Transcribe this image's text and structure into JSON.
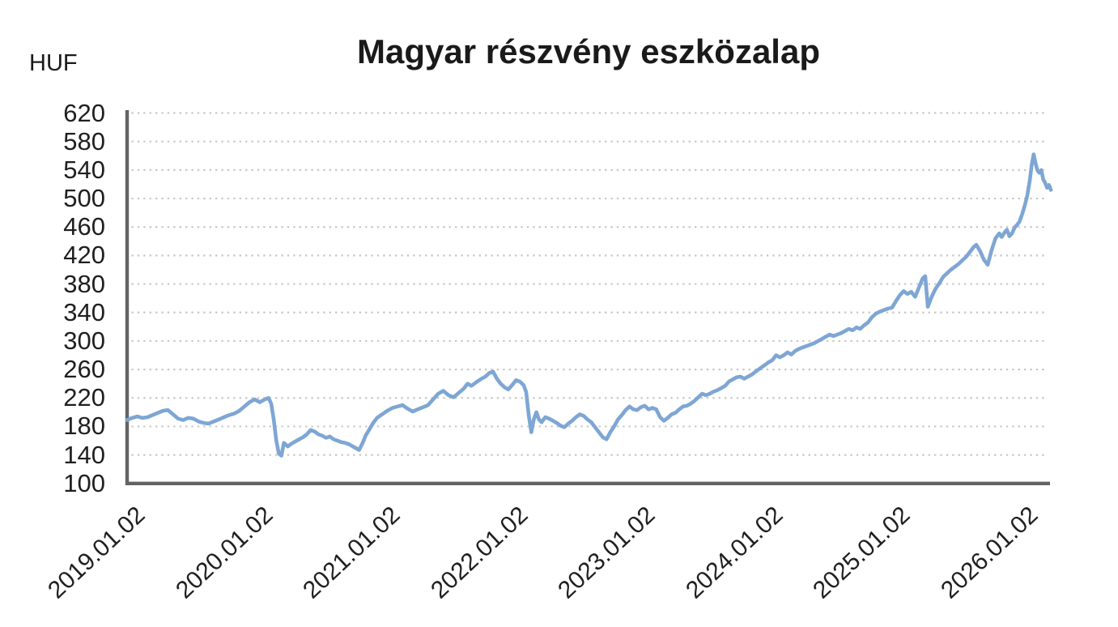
{
  "header": {
    "title": "Magyar részvény eszközalap",
    "unit_label": "HUF"
  },
  "colors": {
    "line": "#7EA6D4",
    "axis": "#636363",
    "grid": "#c9c9c9",
    "text": "#1f1f1f",
    "background": "#ffffff"
  },
  "chart_data": {
    "type": "line",
    "title": "Magyar részvény eszközalap",
    "ylabel": "HUF",
    "xlabel": "",
    "ylim": [
      100,
      620
    ],
    "y_tick_step": 40,
    "y_ticks": [
      620,
      580,
      540,
      500,
      460,
      420,
      380,
      340,
      300,
      260,
      220,
      180,
      140,
      100
    ],
    "x_ticks": [
      {
        "year": 2019,
        "label": "2019.01.02"
      },
      {
        "year": 2020,
        "label": "2020.01.02"
      },
      {
        "year": 2021,
        "label": "2021.01.02"
      },
      {
        "year": 2022,
        "label": "2022.01.02"
      },
      {
        "year": 2023,
        "label": "2023.01.02"
      },
      {
        "year": 2024,
        "label": "2024.01.02"
      },
      {
        "year": 2025,
        "label": "2025.01.02"
      },
      {
        "year": 2026,
        "label": "2026.01.02"
      }
    ],
    "grid": {
      "horizontal": true,
      "vertical": false,
      "style": "dotted"
    },
    "legend": "none",
    "series": [
      {
        "name": "Magyar részvény eszközalap",
        "unit": "HUF",
        "points": [
          [
            2019.0,
            189
          ],
          [
            2019.04,
            192
          ],
          [
            2019.08,
            194
          ],
          [
            2019.12,
            192
          ],
          [
            2019.16,
            193
          ],
          [
            2019.2,
            196
          ],
          [
            2019.24,
            199
          ],
          [
            2019.28,
            202
          ],
          [
            2019.32,
            203
          ],
          [
            2019.36,
            197
          ],
          [
            2019.4,
            191
          ],
          [
            2019.44,
            189
          ],
          [
            2019.48,
            192
          ],
          [
            2019.52,
            191
          ],
          [
            2019.56,
            187
          ],
          [
            2019.6,
            185
          ],
          [
            2019.64,
            184
          ],
          [
            2019.68,
            187
          ],
          [
            2019.72,
            190
          ],
          [
            2019.76,
            193
          ],
          [
            2019.8,
            196
          ],
          [
            2019.84,
            198
          ],
          [
            2019.88,
            202
          ],
          [
            2019.92,
            208
          ],
          [
            2019.96,
            214
          ],
          [
            2020.0,
            218
          ],
          [
            2020.04,
            214
          ],
          [
            2020.08,
            218
          ],
          [
            2020.11,
            220
          ],
          [
            2020.13,
            212
          ],
          [
            2020.15,
            190
          ],
          [
            2020.17,
            160
          ],
          [
            2020.19,
            142
          ],
          [
            2020.21,
            139
          ],
          [
            2020.23,
            157
          ],
          [
            2020.26,
            152
          ],
          [
            2020.29,
            156
          ],
          [
            2020.32,
            159
          ],
          [
            2020.35,
            162
          ],
          [
            2020.38,
            165
          ],
          [
            2020.41,
            169
          ],
          [
            2020.44,
            175
          ],
          [
            2020.47,
            173
          ],
          [
            2020.5,
            169
          ],
          [
            2020.53,
            167
          ],
          [
            2020.56,
            164
          ],
          [
            2020.59,
            166
          ],
          [
            2020.62,
            162
          ],
          [
            2020.65,
            160
          ],
          [
            2020.68,
            158
          ],
          [
            2020.71,
            157
          ],
          [
            2020.74,
            155
          ],
          [
            2020.77,
            152
          ],
          [
            2020.8,
            149
          ],
          [
            2020.82,
            147
          ],
          [
            2020.85,
            158
          ],
          [
            2020.87,
            167
          ],
          [
            2020.9,
            176
          ],
          [
            2020.93,
            185
          ],
          [
            2020.96,
            192
          ],
          [
            2021.0,
            197
          ],
          [
            2021.04,
            202
          ],
          [
            2021.08,
            206
          ],
          [
            2021.12,
            208
          ],
          [
            2021.16,
            210
          ],
          [
            2021.2,
            205
          ],
          [
            2021.24,
            201
          ],
          [
            2021.28,
            204
          ],
          [
            2021.32,
            207
          ],
          [
            2021.36,
            210
          ],
          [
            2021.4,
            218
          ],
          [
            2021.44,
            226
          ],
          [
            2021.48,
            230
          ],
          [
            2021.52,
            224
          ],
          [
            2021.56,
            221
          ],
          [
            2021.6,
            227
          ],
          [
            2021.64,
            233
          ],
          [
            2021.67,
            240
          ],
          [
            2021.7,
            237
          ],
          [
            2021.73,
            241
          ],
          [
            2021.77,
            246
          ],
          [
            2021.81,
            250
          ],
          [
            2021.84,
            255
          ],
          [
            2021.87,
            257
          ],
          [
            2021.9,
            247
          ],
          [
            2021.93,
            240
          ],
          [
            2021.96,
            235
          ],
          [
            2021.99,
            232
          ],
          [
            2022.02,
            238
          ],
          [
            2022.05,
            245
          ],
          [
            2022.08,
            243
          ],
          [
            2022.11,
            238
          ],
          [
            2022.13,
            228
          ],
          [
            2022.15,
            196
          ],
          [
            2022.17,
            172
          ],
          [
            2022.19,
            190
          ],
          [
            2022.21,
            200
          ],
          [
            2022.23,
            190
          ],
          [
            2022.25,
            186
          ],
          [
            2022.28,
            193
          ],
          [
            2022.31,
            191
          ],
          [
            2022.34,
            188
          ],
          [
            2022.37,
            185
          ],
          [
            2022.4,
            181
          ],
          [
            2022.43,
            179
          ],
          [
            2022.46,
            184
          ],
          [
            2022.49,
            188
          ],
          [
            2022.52,
            193
          ],
          [
            2022.55,
            197
          ],
          [
            2022.58,
            195
          ],
          [
            2022.61,
            190
          ],
          [
            2022.64,
            186
          ],
          [
            2022.67,
            179
          ],
          [
            2022.7,
            172
          ],
          [
            2022.73,
            165
          ],
          [
            2022.76,
            162
          ],
          [
            2022.79,
            172
          ],
          [
            2022.82,
            180
          ],
          [
            2022.85,
            190
          ],
          [
            2022.88,
            196
          ],
          [
            2022.91,
            203
          ],
          [
            2022.94,
            208
          ],
          [
            2022.97,
            204
          ],
          [
            2023.0,
            203
          ],
          [
            2023.03,
            207
          ],
          [
            2023.06,
            209
          ],
          [
            2023.09,
            204
          ],
          [
            2023.12,
            206
          ],
          [
            2023.15,
            204
          ],
          [
            2023.18,
            193
          ],
          [
            2023.21,
            188
          ],
          [
            2023.24,
            192
          ],
          [
            2023.27,
            197
          ],
          [
            2023.3,
            199
          ],
          [
            2023.33,
            204
          ],
          [
            2023.36,
            208
          ],
          [
            2023.39,
            209
          ],
          [
            2023.42,
            212
          ],
          [
            2023.45,
            216
          ],
          [
            2023.48,
            221
          ],
          [
            2023.51,
            226
          ],
          [
            2023.54,
            224
          ],
          [
            2023.57,
            226
          ],
          [
            2023.6,
            229
          ],
          [
            2023.63,
            231
          ],
          [
            2023.66,
            234
          ],
          [
            2023.69,
            237
          ],
          [
            2023.72,
            243
          ],
          [
            2023.75,
            246
          ],
          [
            2023.78,
            249
          ],
          [
            2023.81,
            250
          ],
          [
            2023.84,
            247
          ],
          [
            2023.87,
            250
          ],
          [
            2023.9,
            253
          ],
          [
            2023.93,
            257
          ],
          [
            2023.96,
            261
          ],
          [
            2024.0,
            266
          ],
          [
            2024.03,
            270
          ],
          [
            2024.06,
            273
          ],
          [
            2024.09,
            280
          ],
          [
            2024.12,
            277
          ],
          [
            2024.15,
            280
          ],
          [
            2024.18,
            284
          ],
          [
            2024.21,
            281
          ],
          [
            2024.24,
            286
          ],
          [
            2024.27,
            289
          ],
          [
            2024.3,
            291
          ],
          [
            2024.33,
            293
          ],
          [
            2024.36,
            295
          ],
          [
            2024.39,
            297
          ],
          [
            2024.42,
            300
          ],
          [
            2024.45,
            303
          ],
          [
            2024.48,
            306
          ],
          [
            2024.51,
            309
          ],
          [
            2024.54,
            307
          ],
          [
            2024.57,
            309
          ],
          [
            2024.6,
            311
          ],
          [
            2024.63,
            314
          ],
          [
            2024.66,
            317
          ],
          [
            2024.69,
            315
          ],
          [
            2024.72,
            319
          ],
          [
            2024.75,
            317
          ],
          [
            2024.78,
            322
          ],
          [
            2024.81,
            326
          ],
          [
            2024.84,
            333
          ],
          [
            2024.87,
            338
          ],
          [
            2024.9,
            341
          ],
          [
            2024.93,
            343
          ],
          [
            2024.96,
            345
          ],
          [
            2025.0,
            347
          ],
          [
            2025.03,
            356
          ],
          [
            2025.06,
            364
          ],
          [
            2025.09,
            370
          ],
          [
            2025.12,
            366
          ],
          [
            2025.15,
            369
          ],
          [
            2025.18,
            362
          ],
          [
            2025.21,
            375
          ],
          [
            2025.24,
            388
          ],
          [
            2025.26,
            391
          ],
          [
            2025.28,
            348
          ],
          [
            2025.31,
            362
          ],
          [
            2025.34,
            373
          ],
          [
            2025.37,
            381
          ],
          [
            2025.4,
            390
          ],
          [
            2025.43,
            395
          ],
          [
            2025.46,
            400
          ],
          [
            2025.49,
            404
          ],
          [
            2025.52,
            408
          ],
          [
            2025.55,
            413
          ],
          [
            2025.58,
            418
          ],
          [
            2025.61,
            425
          ],
          [
            2025.64,
            432
          ],
          [
            2025.66,
            435
          ],
          [
            2025.69,
            426
          ],
          [
            2025.72,
            414
          ],
          [
            2025.75,
            407
          ],
          [
            2025.78,
            427
          ],
          [
            2025.81,
            444
          ],
          [
            2025.84,
            451
          ],
          [
            2025.86,
            446
          ],
          [
            2025.88,
            452
          ],
          [
            2025.9,
            456
          ],
          [
            2025.92,
            447
          ],
          [
            2025.94,
            451
          ],
          [
            2025.96,
            459
          ],
          [
            2025.98,
            463
          ],
          [
            2026.0,
            468
          ],
          [
            2026.02,
            478
          ],
          [
            2026.04,
            490
          ],
          [
            2026.06,
            504
          ],
          [
            2026.08,
            526
          ],
          [
            2026.095,
            548
          ],
          [
            2026.11,
            562
          ],
          [
            2026.125,
            549
          ],
          [
            2026.14,
            539
          ],
          [
            2026.155,
            536
          ],
          [
            2026.17,
            540
          ],
          [
            2026.185,
            527
          ],
          [
            2026.2,
            522
          ],
          [
            2026.215,
            515
          ],
          [
            2026.23,
            519
          ],
          [
            2026.245,
            512
          ]
        ]
      }
    ]
  }
}
